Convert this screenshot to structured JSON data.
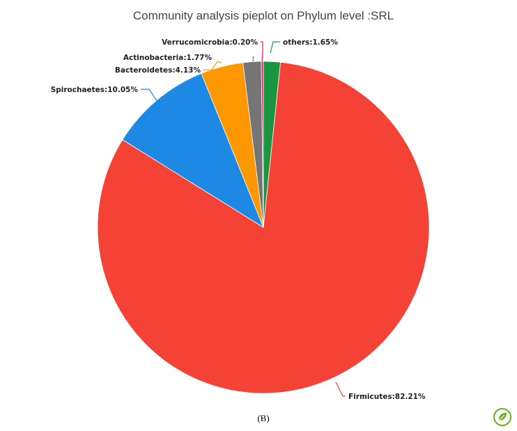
{
  "chart_data": {
    "type": "pie",
    "title": "Community analysis pieplot on Phylum level :SRL",
    "start_angle_deg": 0,
    "direction": "clockwise",
    "slices": [
      {
        "name": "others",
        "label": "others:1.65%",
        "value": 1.65,
        "color": "#1a9641"
      },
      {
        "name": "Firmicutes",
        "label": "Firmicutes:82.21%",
        "value": 82.21,
        "color": "#f44336"
      },
      {
        "name": "Spirochaetes",
        "label": "Spirochaetes:10.05%",
        "value": 10.05,
        "color": "#1e88e5"
      },
      {
        "name": "Bacteroidetes",
        "label": "Bacteroidetes:4.13%",
        "value": 4.13,
        "color": "#ff9800"
      },
      {
        "name": "Actinobacteria",
        "label": "Actinobacteria:1.77%",
        "value": 1.77,
        "color": "#757575"
      },
      {
        "name": "Verrucomicrobia",
        "label": "Verrucomicrobia:0.20%",
        "value": 0.2,
        "color": "#e91e63"
      }
    ]
  },
  "figure": {
    "panel_label": "(B)"
  },
  "logo": {
    "name": "publisher-leaf-logo",
    "color": "#6ab023"
  }
}
